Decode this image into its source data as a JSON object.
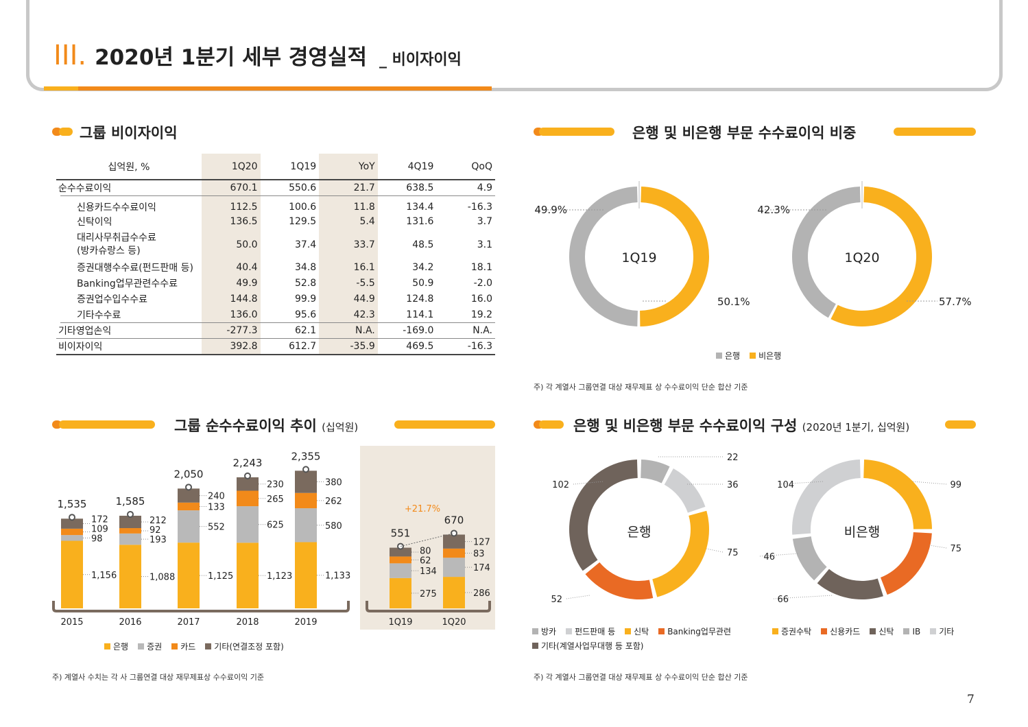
{
  "header": {
    "roman": "III.",
    "title": "2020년 1분기 세부 경영실적",
    "subtitle": "_ 비이자이익"
  },
  "sections": {
    "s1": "그룹 비이자이익",
    "s2": "은행 및 비은행 부문 수수료이익 비중",
    "s3": "그룹 순수수료이익 추이",
    "s3_unit": "(십억원)",
    "s4": "은행 및 비은행 부문 수수료이익 구성",
    "s4_unit": "(2020년 1분기, 십억원)"
  },
  "table": {
    "headers": [
      "십억원, %",
      "1Q20",
      "1Q19",
      "YoY",
      "4Q19",
      "QoQ"
    ],
    "rows": [
      {
        "label": "순수수료이익",
        "vals": [
          "670.1",
          "550.6",
          "21.7",
          "638.5",
          "4.9"
        ],
        "type": "bold"
      },
      {
        "label": "신용카드수수료이익",
        "vals": [
          "112.5",
          "100.6",
          "11.8",
          "134.4",
          "-16.3"
        ],
        "type": "sub"
      },
      {
        "label": "신탁이익",
        "vals": [
          "136.5",
          "129.5",
          "5.4",
          "131.6",
          "3.7"
        ],
        "type": "sub"
      },
      {
        "label": "대리사무취급수수료",
        "label2": "(방카슈랑스 등)",
        "vals": [
          "50.0",
          "37.4",
          "33.7",
          "48.5",
          "3.1"
        ],
        "type": "sub2"
      },
      {
        "label": "증권대행수수료(펀드판매 등)",
        "vals": [
          "40.4",
          "34.8",
          "16.1",
          "34.2",
          "18.1"
        ],
        "type": "sub"
      },
      {
        "label": "Banking업무관련수수료",
        "vals": [
          "49.9",
          "52.8",
          "-5.5",
          "50.9",
          "-2.0"
        ],
        "type": "sub"
      },
      {
        "label": "증권업수입수수료",
        "vals": [
          "144.8",
          "99.9",
          "44.9",
          "124.8",
          "16.0"
        ],
        "type": "sub"
      },
      {
        "label": "기타수수료",
        "vals": [
          "136.0",
          "95.6",
          "42.3",
          "114.1",
          "19.2"
        ],
        "type": "sub"
      },
      {
        "label": "기타영업손익",
        "vals": [
          "-277.3",
          "62.1",
          "N.A.",
          "-169.0",
          "N.A."
        ],
        "type": "sep"
      },
      {
        "label": "비이자이익",
        "vals": [
          "392.8",
          "612.7",
          "-35.9",
          "469.5",
          "-16.3"
        ],
        "type": "last"
      }
    ]
  },
  "notes": {
    "n1": "주) 각 계열사 그룹연결 대상 재무제표 상 수수료이익 단순 합산 기준",
    "n2": "주) 계열사 수치는 각 사 그룹연결 대상 재무제표상 수수료이익 기준",
    "n3": "주) 각 계열사 그룹연결 대상 재무제표 상 수수료이익 단순 합산 기준"
  },
  "page_number": "7",
  "colors": {
    "bank": "#f9b01d",
    "securities": "#b9b9b9",
    "card": "#f28a1a",
    "other": "#7a6a5e",
    "nonbank": "#f9b01d",
    "bankgray": "#b3b3b3"
  },
  "chart_data": [
    {
      "type": "pie",
      "id": "share",
      "series": [
        {
          "name": "1Q19",
          "values": [
            49.9,
            50.1
          ],
          "labels": [
            "49.9%",
            "50.1%"
          ]
        },
        {
          "name": "1Q20",
          "values": [
            42.3,
            57.7
          ],
          "labels": [
            "42.3%",
            "57.7%"
          ]
        }
      ],
      "legend": [
        "은행",
        "비은행"
      ]
    },
    {
      "type": "bar",
      "id": "trend",
      "categories": [
        "2015",
        "2016",
        "2017",
        "2018",
        "2019",
        "1Q19",
        "1Q20"
      ],
      "series": [
        {
          "name": "은행",
          "values": [
            1156,
            1088,
            1125,
            1123,
            1133,
            275,
            286
          ],
          "labels": [
            "1,156",
            "1,088",
            "1,125",
            "1,123",
            "1,133",
            "275",
            "286"
          ]
        },
        {
          "name": "증권",
          "values": [
            98,
            193,
            552,
            625,
            580,
            134,
            174
          ],
          "labels": [
            "98",
            "193",
            "552",
            "625",
            "580",
            "134",
            "174"
          ]
        },
        {
          "name": "카드",
          "values": [
            109,
            92,
            133,
            265,
            262,
            62,
            83
          ],
          "labels": [
            "109",
            "92",
            "133",
            "265",
            "262",
            "62",
            "83"
          ]
        },
        {
          "name": "기타(연결조정 포함)",
          "values": [
            172,
            212,
            240,
            230,
            380,
            80,
            127
          ],
          "labels": [
            "172",
            "212",
            "240",
            "230",
            "380",
            "80",
            "127"
          ]
        }
      ],
      "totals": [
        "1,535",
        "1,585",
        "2,050",
        "2,243",
        "2,355",
        "551",
        "670"
      ],
      "growth_label": "+21.7%"
    },
    {
      "type": "pie",
      "id": "composition",
      "series": [
        {
          "name": "은행",
          "values": [
            22,
            36,
            75,
            52,
            102
          ],
          "labels": [
            "22",
            "36",
            "75",
            "52",
            "102"
          ],
          "categories": [
            "방카",
            "펀드판매 등",
            "신탁",
            "Banking업무관련",
            "기타(계열사업무대행 등 포함)"
          ]
        },
        {
          "name": "비은행",
          "values": [
            99,
            75,
            66,
            46,
            104
          ],
          "labels": [
            "99",
            "75",
            "66",
            "46",
            "104"
          ],
          "categories": [
            "증권수탁",
            "신용카드",
            "신탁",
            "IB",
            "기타"
          ]
        }
      ]
    }
  ]
}
